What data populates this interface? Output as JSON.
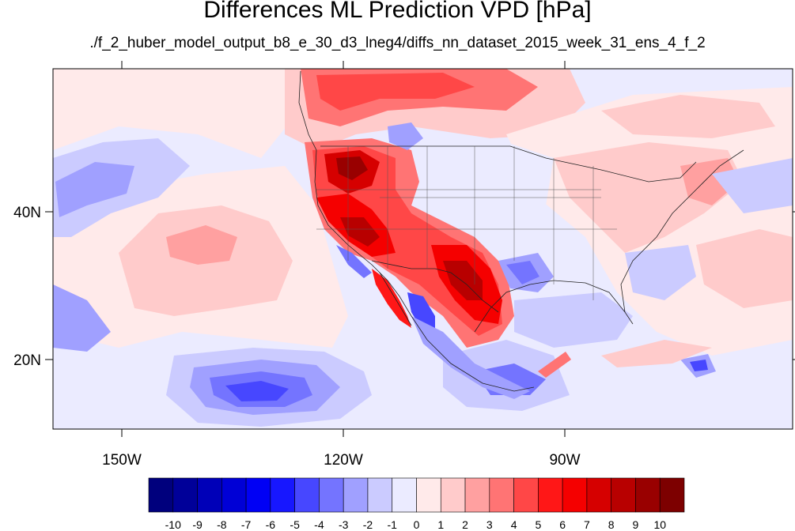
{
  "title": "Differences ML Prediction VPD [hPa]",
  "subtitle": "./f_2_huber_model_output_b8_e_30_d3_lneg4/diffs_nn_dataset_2015_week_31_ens_4_f_2",
  "axes": {
    "lon_labels": [
      "150W",
      "120W",
      "90W"
    ],
    "lat_labels": [
      "40N",
      "20N"
    ]
  },
  "colorbar": {
    "labels": [
      "-10",
      "-9",
      "-8",
      "-7",
      "-6",
      "-5",
      "-4",
      "-3",
      "-2",
      "-1",
      "0",
      "1",
      "2",
      "3",
      "4",
      "5",
      "6",
      "7",
      "8",
      "9",
      "10"
    ],
    "colors": [
      "#00007d",
      "#000099",
      "#0000b8",
      "#0000d6",
      "#0000f5",
      "#1717ff",
      "#4747ff",
      "#7474ff",
      "#a0a0ff",
      "#cbcbff",
      "#ebebff",
      "#ffeaea",
      "#ffcbcb",
      "#ffa0a0",
      "#ff7474",
      "#ff4747",
      "#ff1717",
      "#f50000",
      "#d60000",
      "#b80000",
      "#990000",
      "#7d0000"
    ]
  },
  "map": {
    "background": "#ebebff",
    "regions": [
      {
        "name": "central-pacific-warm",
        "level": 2
      },
      {
        "name": "north-pacific-warm",
        "level": 1
      },
      {
        "name": "west-pacific-cool",
        "level": -3
      },
      {
        "name": "tropical-pacific-cool",
        "level": -4
      },
      {
        "name": "tropical-pacific-core",
        "level": -6
      },
      {
        "name": "us-west-hot",
        "level": 5
      },
      {
        "name": "pacific-northwest-core",
        "level": 8
      },
      {
        "name": "california-core",
        "level": 7
      },
      {
        "name": "texas-mexico-hot",
        "level": 6
      },
      {
        "name": "baja-coast-cool",
        "level": -5
      },
      {
        "name": "gulf-of-california-cool",
        "level": -6
      },
      {
        "name": "canada-north-warm",
        "level": 5
      },
      {
        "name": "northeast-warm",
        "level": 2
      },
      {
        "name": "gulf-coast-cool",
        "level": -3
      },
      {
        "name": "atlantic-warm",
        "level": 1
      },
      {
        "name": "caribbean-cool",
        "level": -5
      }
    ]
  }
}
